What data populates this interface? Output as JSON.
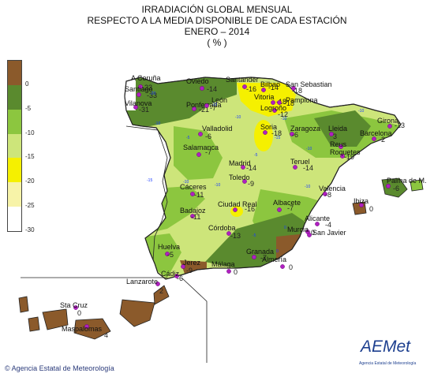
{
  "title": {
    "line1": "IRRADIACIÓN GLOBAL MENSUAL",
    "line2": "RESPECTO A LA MEDIA DISPONIBLE DE CADA ESTACIÓN",
    "line3": "ENERO – 2014",
    "line4": "( % )"
  },
  "legend": {
    "labels": [
      "0",
      "-5",
      "-10",
      "-15",
      "-20",
      "-25",
      "-30"
    ],
    "colors": [
      "#8b5a2b",
      "#5a8a2e",
      "#8cc63f",
      "#cde57a",
      "#f5f000",
      "#f7f3a8",
      "#ffffff"
    ]
  },
  "footer": "© Agencia Estatal de Meteorología",
  "logo": {
    "text": "AEMet",
    "subtitle": "Agencia Estatal de Meteorología"
  },
  "stations": [
    {
      "name": "A Coruña",
      "value": "-23"
    },
    {
      "name": "Santiago",
      "value": "-33"
    },
    {
      "name": "Vilanova",
      "value": "-31"
    },
    {
      "name": "Ponferrada",
      "value": "-21"
    },
    {
      "name": "León",
      "value": "-7"
    },
    {
      "name": "Oviedo",
      "value": "-14"
    },
    {
      "name": "Santander",
      "value": "-16"
    },
    {
      "name": "Bilbao",
      "value": "-14"
    },
    {
      "name": "San Sebastian",
      "value": "-18"
    },
    {
      "name": "Vitoria",
      "value": "-18"
    },
    {
      "name": "Pamplona",
      "value": "-18"
    },
    {
      "name": "Logroño",
      "value": "-12"
    },
    {
      "name": "Valladolid",
      "value": "-6"
    },
    {
      "name": "Soria",
      "value": "-18"
    },
    {
      "name": "Zaragoza",
      "value": "-6"
    },
    {
      "name": "Lleida",
      "value": "3"
    },
    {
      "name": "Girona",
      "value": "-13"
    },
    {
      "name": "Barcelona",
      "value": "-2"
    },
    {
      "name": "Reus",
      "value": ""
    },
    {
      "name": "Roquetes",
      "value": "-19"
    },
    {
      "name": "Salamanca",
      "value": "-7"
    },
    {
      "name": "Madrid",
      "value": "-14"
    },
    {
      "name": "Teruel",
      "value": "-14"
    },
    {
      "name": "Toledo",
      "value": "-9"
    },
    {
      "name": "Palma de M.",
      "value": "-6"
    },
    {
      "name": "Cáceres",
      "value": "-11"
    },
    {
      "name": "Valencia",
      "value": "-8"
    },
    {
      "name": "Ciudad Real",
      "value": "-16"
    },
    {
      "name": "Albacete",
      "value": "-7"
    },
    {
      "name": "Badajoz",
      "value": "-11"
    },
    {
      "name": "Ibiza",
      "value": "0"
    },
    {
      "name": "Alicante",
      "value": "-4"
    },
    {
      "name": "Murcia",
      "value": "0"
    },
    {
      "name": "San Javier",
      "value": ""
    },
    {
      "name": "Córdoba",
      "value": "-13"
    },
    {
      "name": "Huelva",
      "value": "-5"
    },
    {
      "name": "Granada",
      "value": "-7"
    },
    {
      "name": "Almería",
      "value": "0"
    },
    {
      "name": "Jerez",
      "value": "-9"
    },
    {
      "name": "Cádiz",
      "value": "-6"
    },
    {
      "name": "Málaga",
      "value": "0"
    },
    {
      "name": "Lanzarote",
      "value": "2"
    },
    {
      "name": "Sta Cruz",
      "value": "0"
    },
    {
      "name": "Maspalomas",
      "value": "4"
    }
  ],
  "isolines": [
    "-10",
    "-10",
    "-10",
    "-10",
    "-10",
    "-10",
    "-10",
    "-10",
    "-10",
    "-5",
    "-5",
    "-5",
    "-15",
    "-15",
    "-20",
    "0",
    "0"
  ]
}
